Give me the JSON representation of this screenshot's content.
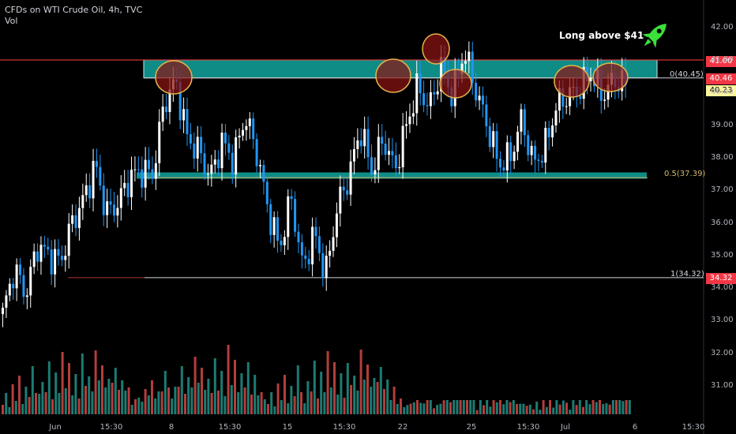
{
  "header": {
    "title": "CFDs on WTI Crude Oil, 4h, TVC",
    "vol_label": "Vol"
  },
  "note": "Long above $41",
  "rocket_icon": "rocket-icon",
  "colors": {
    "bg": "#000000",
    "up": "#ffffff",
    "down": "#2196f3",
    "zone": "#0f8c86",
    "vol_up": "#26a69a",
    "vol_down": "#ef5350",
    "red_line": "#ff4444",
    "fib": "#d4b86a"
  },
  "y_axis": {
    "ticks": [
      "42.00",
      "41.00",
      "40.00",
      "39.00",
      "38.00",
      "37.00",
      "36.00",
      "35.00",
      "34.00",
      "33.00",
      "32.00",
      "31.00"
    ]
  },
  "x_axis": {
    "ticks": [
      "Jun",
      "15:30",
      "8",
      "15:30",
      "15",
      "15:30",
      "22",
      "25",
      "15:30",
      "Jul",
      "6",
      "15:30"
    ]
  },
  "price_labels": {
    "resistance": "41.00",
    "fib0": "40.46",
    "last": "40.23",
    "fib1": "34.32"
  },
  "fib_levels": {
    "level0": "0(40.45)",
    "level05": "0.5(37.39)",
    "level1": "1(34.32)"
  },
  "chart_data": {
    "type": "candlestick",
    "title": "CFDs on WTI Crude Oil, 4h, TVC",
    "ylim": [
      30,
      42.5
    ],
    "horizontal_lines": {
      "resistance": 41.0,
      "fib_0": 40.45,
      "fib_0_5": 37.39,
      "fib_1": 34.32
    },
    "zones": [
      {
        "from": 40.45,
        "to": 41.0
      },
      {
        "from": 37.39,
        "to": 37.55
      }
    ],
    "close_path": [
      33.2,
      34.6,
      33.8,
      35.3,
      35.0,
      34.8,
      36.0,
      36.7,
      37.8,
      36.3,
      36.6,
      37.4,
      37.6,
      37.5,
      39.7,
      40.35,
      38.6,
      38.2,
      37.4,
      38.5,
      37.9,
      39.3,
      38.2,
      36.4,
      35.2,
      36.8,
      34.6,
      35.7,
      34.4,
      36.5,
      37.4,
      38.9,
      37.6,
      38.6,
      37.6,
      39.0,
      40.2,
      39.5,
      40.8,
      39.9,
      41.3,
      40.1,
      39.0,
      37.8,
      38.0,
      39.2,
      37.8,
      38.3,
      39.6,
      39.9,
      40.1,
      40.6,
      39.9,
      40.4,
      40.23
    ],
    "volume_pattern": [
      12,
      20,
      8,
      30,
      15,
      40,
      10,
      25,
      18,
      50,
      22,
      14,
      35,
      28,
      60,
      18,
      45,
      25,
      70,
      30,
      55,
      20,
      40,
      15,
      65,
      30,
      48,
      22,
      80,
      35,
      60,
      25,
      42,
      30,
      55,
      20,
      38,
      18,
      28,
      12
    ]
  }
}
